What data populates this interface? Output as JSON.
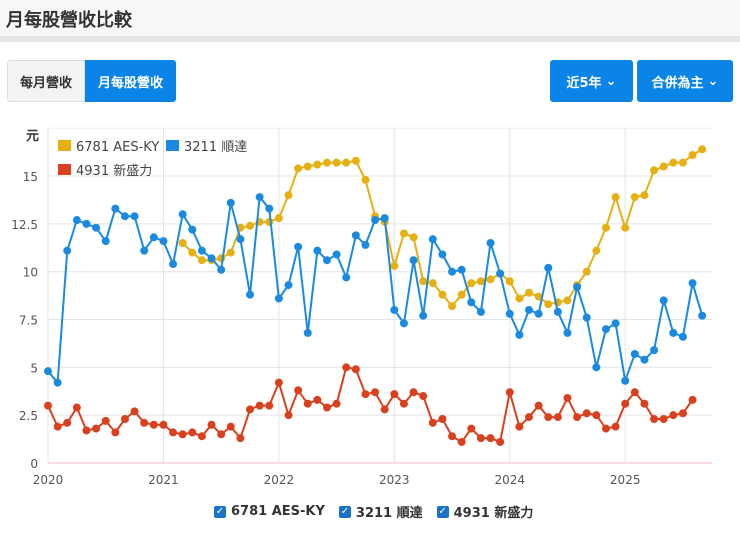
{
  "header": {
    "title": "月每股營收比較"
  },
  "tabs": [
    {
      "label": "每月營收",
      "active": false
    },
    {
      "label": "月每股營收",
      "active": true
    }
  ],
  "dropdowns": {
    "period": "近5年",
    "basis": "合併為主"
  },
  "chart_data": {
    "type": "line",
    "ylabel": "元",
    "ylim": [
      0,
      17.5
    ],
    "yticks": [
      "0",
      "2.5",
      "5",
      "7.5",
      "10",
      "12.5",
      "15"
    ],
    "xticks": [
      "2020",
      "2021",
      "2022",
      "2023",
      "2024",
      "2025"
    ],
    "x_start": "2020-01",
    "x_unit": "month",
    "grid": true,
    "legend_placement": "top-left",
    "series": [
      {
        "name": "6781 AES-KY",
        "color": "#e6b012",
        "start": "2021-03",
        "values": [
          11.5,
          11.0,
          10.6,
          10.6,
          10.7,
          11.0,
          12.3,
          12.4,
          12.6,
          12.6,
          12.8,
          14.0,
          15.4,
          15.5,
          15.6,
          15.7,
          15.7,
          15.7,
          15.8,
          14.8,
          12.9,
          12.6,
          10.3,
          12.0,
          11.8,
          9.5,
          9.4,
          8.8,
          8.2,
          8.8,
          9.4,
          9.5,
          9.6,
          9.9,
          9.5,
          8.6,
          8.9,
          8.7,
          8.3,
          8.4,
          8.5,
          9.3,
          10.0,
          11.1,
          12.3,
          13.9,
          12.3,
          13.9,
          14.0,
          15.3,
          15.5,
          15.7,
          15.7,
          16.1,
          16.4
        ]
      },
      {
        "name": "3211 順達",
        "color": "#1a8ae0",
        "start": "2020-01",
        "values": [
          4.8,
          4.2,
          11.1,
          12.7,
          12.5,
          12.3,
          11.6,
          13.3,
          12.9,
          12.9,
          11.1,
          11.8,
          11.6,
          10.4,
          13.0,
          12.2,
          11.1,
          10.7,
          10.1,
          13.6,
          11.7,
          8.8,
          13.9,
          13.3,
          8.6,
          9.3,
          11.3,
          6.8,
          11.1,
          10.6,
          10.9,
          9.7,
          11.9,
          11.4,
          12.7,
          12.8,
          8.0,
          7.3,
          10.6,
          7.7,
          11.7,
          10.9,
          10.0,
          10.1,
          8.4,
          7.9,
          11.5,
          9.9,
          7.8,
          6.7,
          8.0,
          7.8,
          10.2,
          7.9,
          6.8,
          9.2,
          7.6,
          5.0,
          7.0,
          7.3,
          4.3,
          5.7,
          5.4,
          5.9,
          8.5,
          6.8,
          6.6,
          9.4,
          7.7
        ]
      },
      {
        "name": "4931 新盛力",
        "color": "#d9411e",
        "start": "2020-01",
        "values": [
          3.0,
          1.9,
          2.1,
          2.9,
          1.7,
          1.8,
          2.2,
          1.6,
          2.3,
          2.7,
          2.1,
          2.0,
          2.0,
          1.6,
          1.5,
          1.6,
          1.4,
          2.0,
          1.5,
          1.9,
          1.3,
          2.8,
          3.0,
          3.0,
          4.2,
          2.5,
          3.8,
          3.1,
          3.3,
          2.9,
          3.1,
          5.0,
          4.9,
          3.6,
          3.7,
          2.8,
          3.6,
          3.1,
          3.7,
          3.5,
          2.1,
          2.3,
          1.4,
          1.1,
          1.8,
          1.3,
          1.3,
          1.1,
          3.7,
          1.9,
          2.4,
          3.0,
          2.4,
          2.4,
          3.4,
          2.4,
          2.6,
          2.5,
          1.8,
          1.9,
          3.1,
          3.7,
          3.1,
          2.3,
          2.3,
          2.5,
          2.6,
          3.3
        ]
      }
    ]
  }
}
